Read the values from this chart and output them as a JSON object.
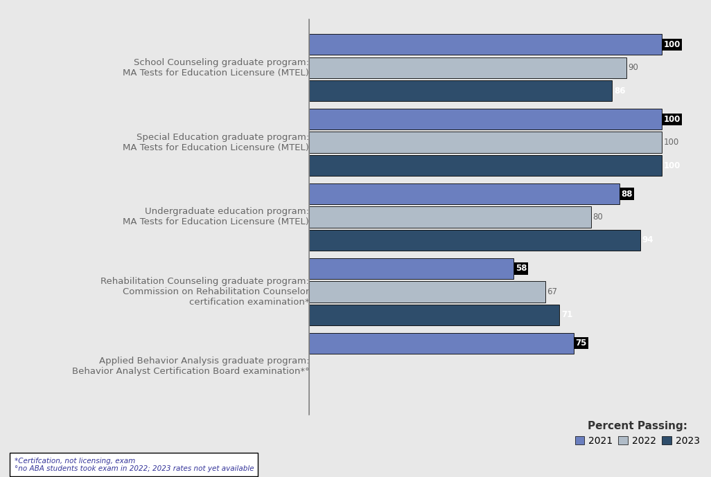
{
  "categories": [
    "School Counseling graduate program:\nMA Tests for Education Licensure (MTEL)",
    "Special Education graduate program:\nMA Tests for Education Licensure (MTEL)",
    "Undergraduate education program:\nMA Tests for Education Licensure (MTEL)",
    "Rehabilitation Counseling graduate program:\nCommission on Rehabilitation Counselor\ncertification examination*",
    "Applied Behavior Analysis graduate program:\nBehavior Analyst Certification Board examination*°"
  ],
  "year_2021": [
    100,
    100,
    88,
    58,
    75
  ],
  "year_2022": [
    90,
    100,
    80,
    67,
    null
  ],
  "year_2023": [
    86,
    100,
    94,
    71,
    null
  ],
  "color_2021": "#6B7FBF",
  "color_2022": "#B0BCC8",
  "color_2023": "#2E4D6B",
  "xlim": [
    0,
    110
  ],
  "background_color": "#E8E8E8",
  "footnote_line1": "*Certifcation, not licensing, exam",
  "footnote_line2": "°no ABA students took exam in 2022; 2023 rates not yet available",
  "legend_title": "Percent Passing:",
  "legend_labels": [
    "2021",
    "2022",
    "2023"
  ],
  "bar_height": 0.28,
  "bar_label_fontsize": 8.5,
  "category_fontsize": 9.5
}
